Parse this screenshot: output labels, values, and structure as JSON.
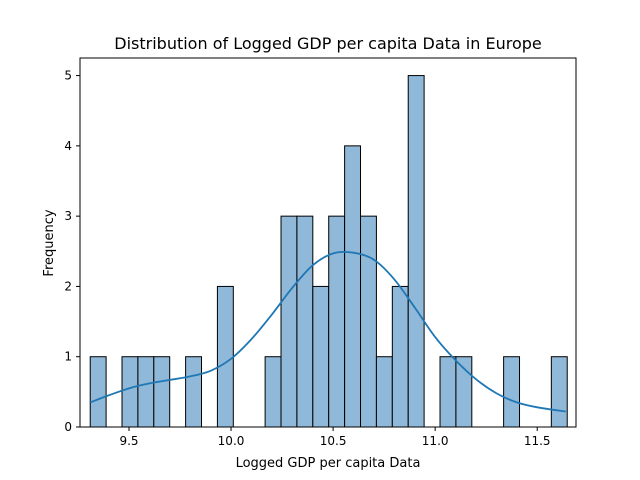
{
  "chart_data": {
    "type": "bar",
    "title": "Distribution of Logged GDP per capita Data in Europe",
    "xlabel": "Logged GDP per capita Data",
    "ylabel": "Frequency",
    "xlim": [
      9.26,
      11.69
    ],
    "ylim": [
      0,
      5.25
    ],
    "xticks": [
      9.5,
      10.0,
      10.5,
      11.0,
      11.5
    ],
    "xtick_labels": [
      "9.5",
      "10.0",
      "10.5",
      "11.0",
      "11.5"
    ],
    "yticks": [
      0,
      1,
      2,
      3,
      4,
      5
    ],
    "ytick_labels": [
      "0",
      "1",
      "2",
      "3",
      "4",
      "5"
    ],
    "grid": false,
    "bar_color": "#8fb8d9",
    "bar_edge_color": "#000000",
    "kde_color": "#1f77b4",
    "bin_start": 9.31,
    "bin_width": 0.0779,
    "counts": [
      1,
      0,
      1,
      1,
      1,
      0,
      1,
      0,
      2,
      0,
      0,
      1,
      3,
      3,
      2,
      3,
      4,
      3,
      1,
      2,
      5,
      0,
      1,
      1,
      0,
      0,
      1,
      0,
      0,
      1
    ],
    "kde": {
      "x": [
        9.31,
        9.4,
        9.5,
        9.6,
        9.7,
        9.8,
        9.9,
        10.0,
        10.1,
        10.2,
        10.3,
        10.4,
        10.5,
        10.6,
        10.7,
        10.8,
        10.9,
        11.0,
        11.1,
        11.2,
        11.3,
        11.4,
        11.5,
        11.64
      ],
      "y": [
        0.35,
        0.45,
        0.55,
        0.62,
        0.67,
        0.72,
        0.8,
        0.97,
        1.25,
        1.6,
        1.98,
        2.3,
        2.47,
        2.48,
        2.38,
        2.1,
        1.7,
        1.28,
        0.95,
        0.68,
        0.48,
        0.35,
        0.28,
        0.22
      ]
    }
  }
}
